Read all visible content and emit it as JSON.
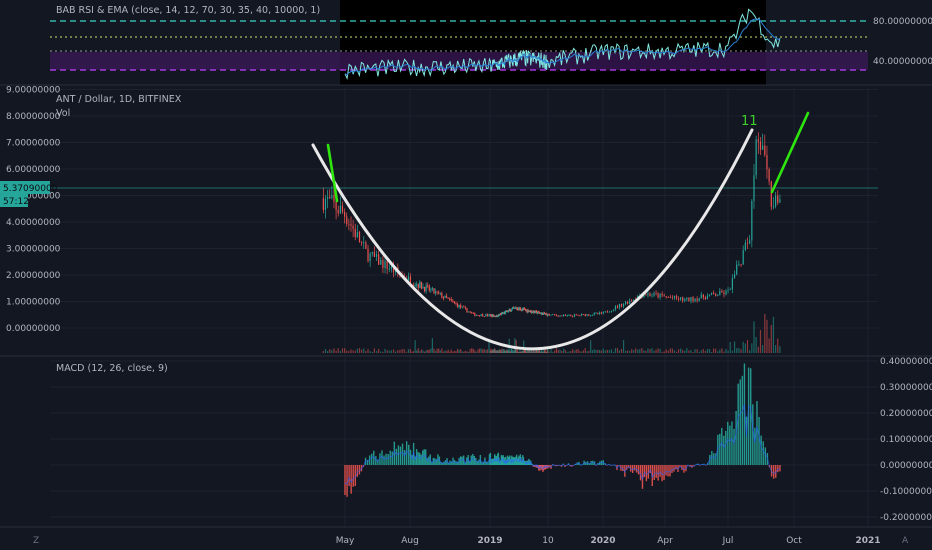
{
  "rsi_panel": {
    "title": "BAΒ RSI & EMA (close, 14, 12, 70, 30, 35, 40, 10000, 1)",
    "ticks": [
      "80.00000000",
      "40.00000000"
    ],
    "colors": {
      "line": "#7fe8e0",
      "band": "#4a1f6e",
      "upper": "#26a69a",
      "lower": "#b03aff",
      "fast": "#e0e0e0"
    }
  },
  "main_panel": {
    "title": "ANT / Dollar, 1D, BITFINEX",
    "vol_label": "Vol",
    "ticks": [
      "9.00000000",
      "8.00000000",
      "7.00000000",
      "6.00000000",
      "5.00000000",
      "4.00000000",
      "3.00000000",
      "2.00000000",
      "1.00000000",
      "0.00000000"
    ],
    "price_badge": "5.37090000",
    "time_badge": "57:12",
    "annotation": "11",
    "colors": {
      "up": "#26a69a",
      "down": "#ef5350",
      "curve": "#e8e8e8",
      "green": "#2ee60e",
      "badge": "#26a69a"
    }
  },
  "macd_panel": {
    "title": "MACD (12, 26, close, 9)",
    "ticks": [
      "0.40000000",
      "0.30000000",
      "0.20000000",
      "0.10000000",
      "0.00000000",
      "-0.10000000",
      "-0.20000000"
    ]
  },
  "x_axis": {
    "labels": [
      "May",
      "Aug",
      "2019",
      "10",
      "2020",
      "Apr",
      "Jul",
      "Oct",
      "2021"
    ]
  },
  "footer": {
    "left_icon": "Z",
    "right_icon": "A"
  },
  "chart_data": [
    {
      "type": "line",
      "title": "BAΒ RSI & EMA (close, 14, 12, 70, 30, 35, 40, 10000, 1)",
      "ylim": [
        25,
        95
      ],
      "levels": [
        70,
        30,
        35,
        40
      ],
      "series_trend": [
        {
          "x": "2018-05",
          "y": 40
        },
        {
          "x": "2018-08",
          "y": 42
        },
        {
          "x": "2019-01",
          "y": 43
        },
        {
          "x": "2019-06",
          "y": 50
        },
        {
          "x": "2019-10",
          "y": 47
        },
        {
          "x": "2020-01",
          "y": 55
        },
        {
          "x": "2020-04",
          "y": 55
        },
        {
          "x": "2020-07",
          "y": 58
        },
        {
          "x": "2020-08",
          "y": 90
        },
        {
          "x": "2020-09",
          "y": 62
        }
      ]
    },
    {
      "type": "candlestick",
      "title": "ANT / Dollar, 1D, BITFINEX",
      "ylim": [
        -0.3,
        9
      ],
      "last_price": 5.3709,
      "close_trend": [
        {
          "x": "2018-04",
          "y": 4.9
        },
        {
          "x": "2018-05",
          "y": 4.3
        },
        {
          "x": "2018-06",
          "y": 2.8
        },
        {
          "x": "2018-08",
          "y": 1.8
        },
        {
          "x": "2018-10",
          "y": 1.2
        },
        {
          "x": "2018-12",
          "y": 0.5
        },
        {
          "x": "2019-02",
          "y": 0.45
        },
        {
          "x": "2019-05",
          "y": 0.75
        },
        {
          "x": "2019-08",
          "y": 0.6
        },
        {
          "x": "2019-11",
          "y": 0.45
        },
        {
          "x": "2020-01",
          "y": 0.55
        },
        {
          "x": "2020-03",
          "y": 1.3
        },
        {
          "x": "2020-05",
          "y": 1.05
        },
        {
          "x": "2020-07",
          "y": 1.35
        },
        {
          "x": "2020-08",
          "y": 3.5
        },
        {
          "x": "2020-08-10",
          "y": 7.8
        },
        {
          "x": "2020-09",
          "y": 4.6
        }
      ]
    },
    {
      "type": "bar",
      "title": "MACD (12, 26, close, 9)",
      "ylim": [
        -0.22,
        0.42
      ],
      "histogram_trend": [
        {
          "x": "2018-05",
          "y": -0.18
        },
        {
          "x": "2018-06",
          "y": 0.03
        },
        {
          "x": "2018-08",
          "y": 0.09
        },
        {
          "x": "2018-10",
          "y": 0.02
        },
        {
          "x": "2019-01",
          "y": 0.04
        },
        {
          "x": "2019-06",
          "y": 0.03
        },
        {
          "x": "2019-09",
          "y": -0.02
        },
        {
          "x": "2020-01",
          "y": 0.02
        },
        {
          "x": "2020-03",
          "y": -0.08
        },
        {
          "x": "2020-06",
          "y": 0.01
        },
        {
          "x": "2020-08",
          "y": 0.38
        },
        {
          "x": "2020-09",
          "y": -0.05
        }
      ]
    }
  ]
}
